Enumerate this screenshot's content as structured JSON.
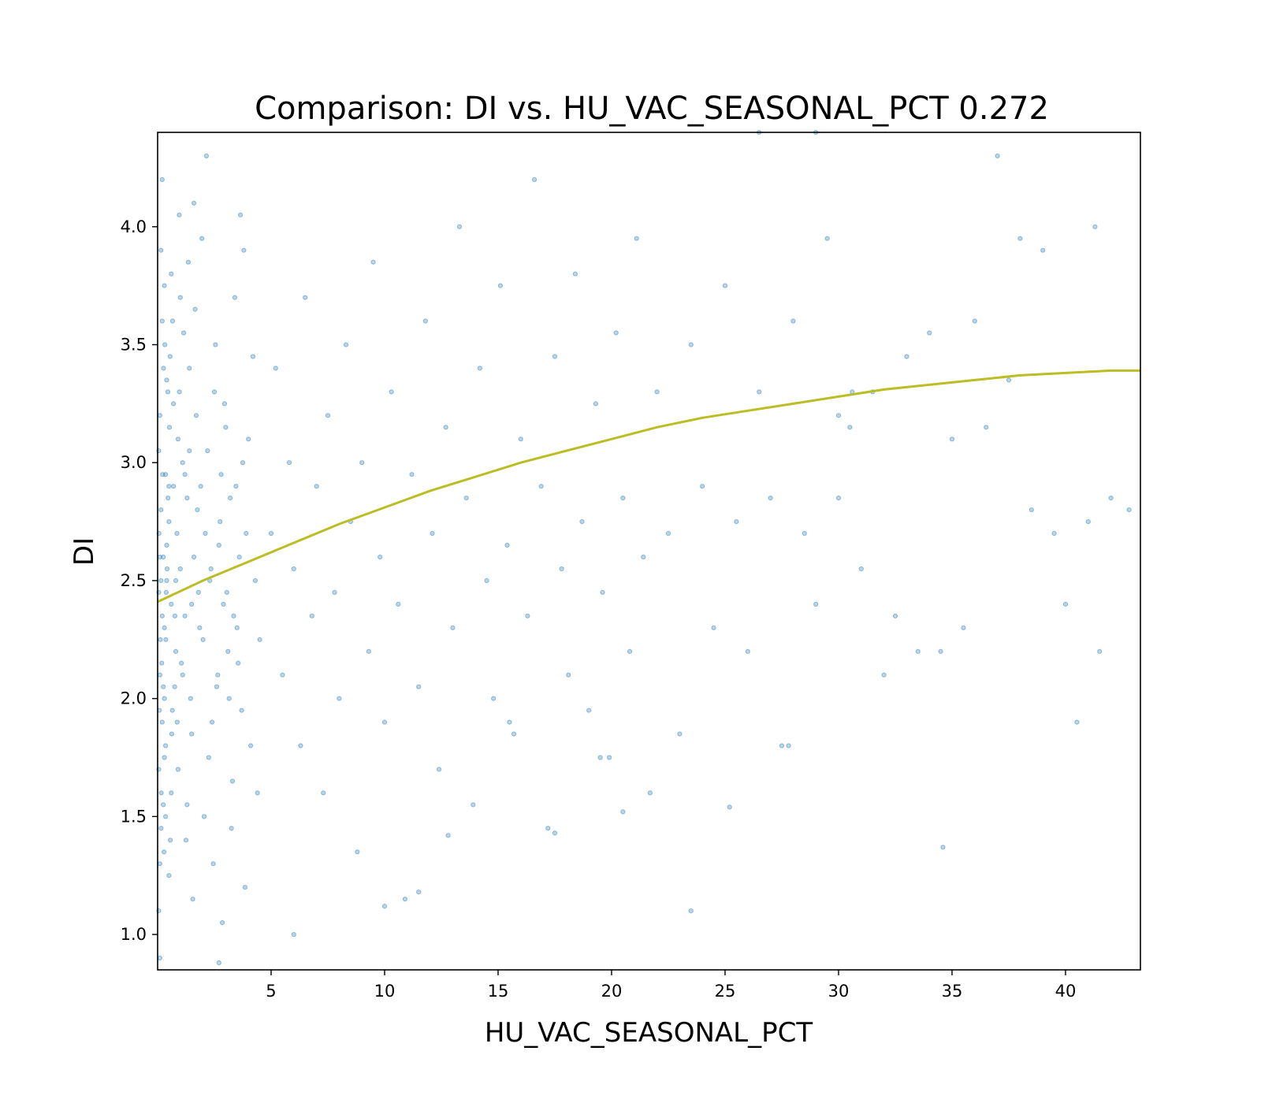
{
  "chart_data": {
    "type": "scatter",
    "title": "Comparison:  DI  vs.  HU_VAC_SEASONAL_PCT  0.272",
    "xlabel": "HU_VAC_SEASONAL_PCT",
    "ylabel": "DI",
    "xlim": [
      0,
      43.3
    ],
    "ylim": [
      0.85,
      4.4
    ],
    "xticks": [
      5,
      10,
      15,
      20,
      25,
      30,
      35,
      40
    ],
    "yticks": [
      1.0,
      1.5,
      2.0,
      2.5,
      3.0,
      3.5,
      4.0
    ],
    "xtick_labels": [
      "5",
      "10",
      "15",
      "20",
      "25",
      "30",
      "35",
      "40"
    ],
    "ytick_labels": [
      "1.0",
      "1.5",
      "2.0",
      "2.5",
      "3.0",
      "3.5",
      "4.0"
    ],
    "grid": false,
    "legend": "none",
    "series": [
      {
        "kind": "points",
        "color": "#1f77b4",
        "opacity": 0.3,
        "points": [
          [
            0.05,
            2.45
          ],
          [
            0.1,
            2.1
          ],
          [
            0.15,
            2.8
          ],
          [
            0.2,
            1.9
          ],
          [
            0.1,
            3.2
          ],
          [
            0.25,
            2.6
          ],
          [
            0.3,
            2.3
          ],
          [
            0.05,
            1.7
          ],
          [
            0.2,
            3.6
          ],
          [
            0.35,
            2.95
          ],
          [
            0.1,
            1.3
          ],
          [
            0.4,
            2.5
          ],
          [
            0.15,
            3.9
          ],
          [
            0.3,
            2.0
          ],
          [
            0.5,
            2.75
          ],
          [
            0.05,
            1.1
          ],
          [
            0.45,
            3.3
          ],
          [
            0.25,
            1.55
          ],
          [
            0.6,
            2.4
          ],
          [
            0.2,
            4.2
          ],
          [
            0.7,
            2.9
          ],
          [
            0.35,
            1.8
          ],
          [
            0.55,
            3.45
          ],
          [
            0.1,
            0.9
          ],
          [
            0.8,
            2.2
          ],
          [
            0.4,
            2.65
          ],
          [
            0.9,
            3.1
          ],
          [
            0.15,
            1.45
          ],
          [
            1.0,
            2.55
          ],
          [
            0.65,
            1.95
          ],
          [
            1.1,
            3.0
          ],
          [
            0.3,
            3.75
          ],
          [
            1.2,
            2.35
          ],
          [
            0.75,
            2.05
          ],
          [
            1.3,
            2.85
          ],
          [
            0.5,
            1.25
          ],
          [
            1.4,
            3.4
          ],
          [
            0.85,
            2.7
          ],
          [
            1.5,
            1.85
          ],
          [
            0.95,
            4.05
          ],
          [
            1.6,
            2.6
          ],
          [
            1.05,
            2.15
          ],
          [
            1.7,
            3.2
          ],
          [
            0.6,
            1.6
          ],
          [
            1.8,
            2.45
          ],
          [
            1.15,
            3.55
          ],
          [
            1.9,
            2.9
          ],
          [
            1.25,
            1.4
          ],
          [
            2.0,
            2.25
          ],
          [
            1.35,
            3.85
          ],
          [
            2.1,
            2.7
          ],
          [
            1.45,
            2.0
          ],
          [
            2.2,
            3.05
          ],
          [
            1.55,
            1.15
          ],
          [
            2.3,
            2.5
          ],
          [
            1.65,
            3.65
          ],
          [
            2.4,
            1.9
          ],
          [
            1.75,
            2.8
          ],
          [
            2.5,
            3.3
          ],
          [
            1.85,
            2.3
          ],
          [
            2.6,
            2.05
          ],
          [
            1.95,
            3.95
          ],
          [
            2.7,
            2.65
          ],
          [
            2.05,
            1.5
          ],
          [
            2.8,
            2.95
          ],
          [
            2.15,
            4.3
          ],
          [
            2.9,
            2.4
          ],
          [
            2.25,
            1.75
          ],
          [
            3.0,
            3.15
          ],
          [
            2.35,
            2.55
          ],
          [
            3.1,
            2.2
          ],
          [
            2.45,
            1.3
          ],
          [
            3.2,
            2.85
          ],
          [
            2.55,
            3.5
          ],
          [
            3.3,
            1.65
          ],
          [
            2.65,
            2.1
          ],
          [
            3.4,
            3.7
          ],
          [
            2.75,
            2.75
          ],
          [
            3.5,
            2.3
          ],
          [
            2.85,
            1.05
          ],
          [
            3.6,
            2.6
          ],
          [
            2.95,
            3.25
          ],
          [
            3.7,
            1.95
          ],
          [
            3.05,
            2.45
          ],
          [
            3.8,
            3.9
          ],
          [
            3.15,
            2.0
          ],
          [
            3.9,
            2.7
          ],
          [
            3.25,
            1.45
          ],
          [
            4.0,
            3.1
          ],
          [
            3.35,
            2.35
          ],
          [
            4.1,
            1.8
          ],
          [
            3.45,
            2.9
          ],
          [
            4.2,
            3.45
          ],
          [
            3.55,
            2.15
          ],
          [
            4.3,
            2.5
          ],
          [
            3.65,
            4.05
          ],
          [
            4.4,
            1.6
          ],
          [
            3.75,
            3.0
          ],
          [
            4.5,
            2.25
          ],
          [
            3.85,
            1.2
          ],
          [
            0.1,
            2.6
          ],
          [
            0.2,
            2.35
          ],
          [
            0.05,
            3.05
          ],
          [
            0.3,
            1.75
          ],
          [
            0.15,
            2.5
          ],
          [
            0.4,
            3.35
          ],
          [
            0.25,
            2.05
          ],
          [
            0.5,
            2.9
          ],
          [
            0.35,
            1.5
          ],
          [
            0.6,
            3.8
          ],
          [
            0.12,
            2.25
          ],
          [
            0.22,
            2.95
          ],
          [
            0.08,
            1.95
          ],
          [
            0.32,
            3.5
          ],
          [
            0.18,
            2.15
          ],
          [
            0.42,
            2.55
          ],
          [
            0.28,
            1.35
          ],
          [
            0.52,
            3.15
          ],
          [
            0.38,
            2.45
          ],
          [
            0.62,
            1.85
          ],
          [
            0.7,
            3.25
          ],
          [
            0.8,
            2.5
          ],
          [
            0.9,
            1.7
          ],
          [
            1.0,
            3.7
          ],
          [
            1.1,
            2.1
          ],
          [
            1.2,
            2.95
          ],
          [
            1.3,
            1.55
          ],
          [
            1.4,
            3.05
          ],
          [
            1.5,
            2.4
          ],
          [
            1.6,
            4.1
          ],
          [
            0.06,
            2.7
          ],
          [
            0.16,
            1.6
          ],
          [
            0.26,
            3.4
          ],
          [
            0.36,
            2.25
          ],
          [
            0.46,
            2.85
          ],
          [
            0.56,
            1.4
          ],
          [
            0.66,
            3.6
          ],
          [
            0.76,
            2.35
          ],
          [
            0.86,
            1.9
          ],
          [
            0.96,
            3.3
          ],
          [
            5.0,
            2.7
          ],
          [
            5.2,
            3.4
          ],
          [
            5.5,
            2.1
          ],
          [
            5.8,
            3.0
          ],
          [
            6.0,
            2.55
          ],
          [
            6.3,
            1.8
          ],
          [
            6.5,
            3.7
          ],
          [
            6.8,
            2.35
          ],
          [
            7.0,
            2.9
          ],
          [
            7.3,
            1.6
          ],
          [
            7.5,
            3.2
          ],
          [
            7.8,
            2.45
          ],
          [
            8.0,
            2.0
          ],
          [
            8.3,
            3.5
          ],
          [
            8.5,
            2.75
          ],
          [
            8.8,
            1.35
          ],
          [
            9.0,
            3.0
          ],
          [
            9.3,
            2.2
          ],
          [
            9.5,
            3.85
          ],
          [
            9.8,
            2.6
          ],
          [
            10.0,
            1.9
          ],
          [
            10.3,
            3.3
          ],
          [
            10.6,
            2.4
          ],
          [
            10.9,
            1.15
          ],
          [
            11.2,
            2.95
          ],
          [
            11.5,
            2.05
          ],
          [
            11.8,
            3.6
          ],
          [
            12.1,
            2.7
          ],
          [
            12.4,
            1.7
          ],
          [
            12.7,
            3.15
          ],
          [
            13.0,
            2.3
          ],
          [
            13.3,
            4.0
          ],
          [
            13.6,
            2.85
          ],
          [
            13.9,
            1.55
          ],
          [
            14.2,
            3.4
          ],
          [
            14.5,
            2.5
          ],
          [
            14.8,
            2.0
          ],
          [
            15.1,
            3.75
          ],
          [
            15.4,
            2.65
          ],
          [
            15.7,
            1.85
          ],
          [
            16.0,
            3.1
          ],
          [
            16.3,
            2.35
          ],
          [
            16.6,
            4.2
          ],
          [
            16.9,
            2.9
          ],
          [
            17.2,
            1.45
          ],
          [
            17.5,
            3.45
          ],
          [
            17.8,
            2.55
          ],
          [
            18.1,
            2.1
          ],
          [
            18.4,
            3.8
          ],
          [
            18.7,
            2.75
          ],
          [
            19.0,
            1.95
          ],
          [
            19.3,
            3.25
          ],
          [
            19.6,
            2.45
          ],
          [
            19.9,
            1.75
          ],
          [
            20.2,
            3.55
          ],
          [
            20.5,
            2.85
          ],
          [
            20.8,
            2.2
          ],
          [
            21.1,
            3.95
          ],
          [
            21.4,
            2.6
          ],
          [
            21.7,
            1.6
          ],
          [
            22.0,
            3.3
          ],
          [
            22.5,
            2.7
          ],
          [
            23.0,
            1.85
          ],
          [
            23.5,
            3.5
          ],
          [
            24.0,
            2.9
          ],
          [
            24.5,
            2.3
          ],
          [
            25.0,
            3.75
          ],
          [
            25.5,
            2.75
          ],
          [
            26.0,
            2.2
          ],
          [
            26.5,
            3.3
          ],
          [
            27.0,
            2.85
          ],
          [
            27.5,
            1.8
          ],
          [
            28.0,
            3.6
          ],
          [
            28.5,
            2.7
          ],
          [
            29.0,
            2.4
          ],
          [
            29.5,
            3.95
          ],
          [
            30.0,
            2.85
          ],
          [
            30.5,
            3.15
          ],
          [
            31.0,
            2.55
          ],
          [
            31.5,
            3.3
          ],
          [
            32.0,
            2.1
          ],
          [
            32.5,
            2.35
          ],
          [
            33.0,
            3.45
          ],
          [
            33.5,
            2.2
          ],
          [
            34.0,
            3.55
          ],
          [
            34.5,
            2.2
          ],
          [
            35.0,
            3.1
          ],
          [
            35.5,
            2.3
          ],
          [
            36.0,
            3.6
          ],
          [
            36.5,
            3.15
          ],
          [
            37.0,
            4.3
          ],
          [
            37.5,
            3.35
          ],
          [
            38.0,
            3.95
          ],
          [
            38.5,
            2.8
          ],
          [
            39.0,
            3.9
          ],
          [
            39.5,
            2.7
          ],
          [
            40.0,
            2.4
          ],
          [
            40.5,
            1.9
          ],
          [
            41.0,
            2.75
          ],
          [
            41.5,
            2.2
          ],
          [
            42.0,
            2.85
          ],
          [
            42.8,
            2.8
          ],
          [
            41.3,
            4.0
          ],
          [
            34.6,
            1.37
          ],
          [
            23.5,
            1.1
          ],
          [
            17.5,
            1.43
          ],
          [
            12.8,
            1.42
          ],
          [
            10.0,
            1.12
          ],
          [
            11.5,
            1.18
          ],
          [
            2.7,
            0.88
          ],
          [
            26.5,
            4.4
          ],
          [
            29.0,
            4.4
          ],
          [
            30.0,
            3.2
          ],
          [
            30.6,
            3.3
          ],
          [
            27.8,
            1.8
          ],
          [
            25.2,
            1.54
          ],
          [
            20.5,
            1.52
          ],
          [
            19.5,
            1.75
          ],
          [
            15.5,
            1.9
          ],
          [
            6.0,
            1.0
          ]
        ]
      },
      {
        "kind": "fit_curve",
        "color": "#bcbd22",
        "x": [
          0,
          2,
          4,
          6,
          8,
          10,
          12,
          14,
          16,
          18,
          20,
          22,
          24,
          26,
          28,
          30,
          32,
          34,
          36,
          38,
          40,
          42,
          43.3
        ],
        "y": [
          2.41,
          2.5,
          2.58,
          2.66,
          2.74,
          2.81,
          2.88,
          2.94,
          3.0,
          3.05,
          3.1,
          3.15,
          3.19,
          3.22,
          3.25,
          3.28,
          3.31,
          3.33,
          3.35,
          3.37,
          3.38,
          3.39,
          3.39
        ]
      }
    ]
  }
}
